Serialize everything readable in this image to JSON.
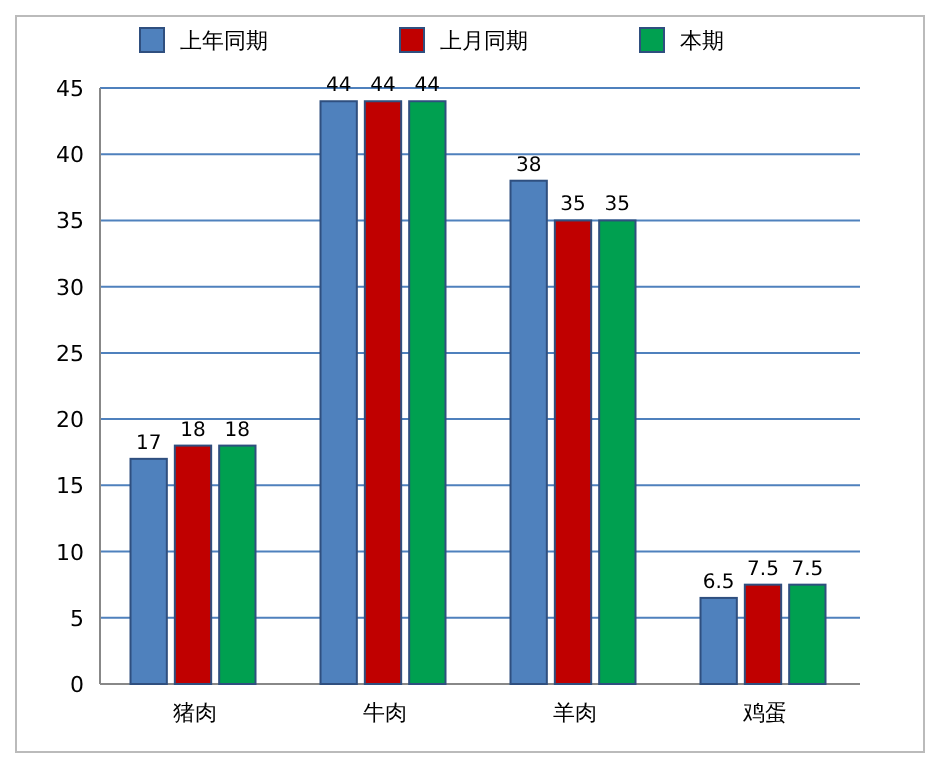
{
  "chart_data": {
    "type": "bar",
    "categories": [
      "猪肉",
      "牛肉",
      "羊肉",
      "鸡蛋"
    ],
    "series": [
      {
        "name": "上年同期",
        "color": "#4f81bd",
        "values": [
          17,
          44,
          38,
          6.5
        ]
      },
      {
        "name": "上月同期",
        "color": "#c00000",
        "values": [
          18,
          44,
          35,
          7.5
        ]
      },
      {
        "name": "本期",
        "color": "#00a050",
        "values": [
          18,
          44,
          35,
          7.5
        ]
      }
    ],
    "ylim": [
      0,
      45
    ],
    "yticks": [
      0,
      5,
      10,
      15,
      20,
      25,
      30,
      35,
      40,
      45
    ],
    "grid": "y",
    "legend": "top",
    "data_labels": true
  }
}
